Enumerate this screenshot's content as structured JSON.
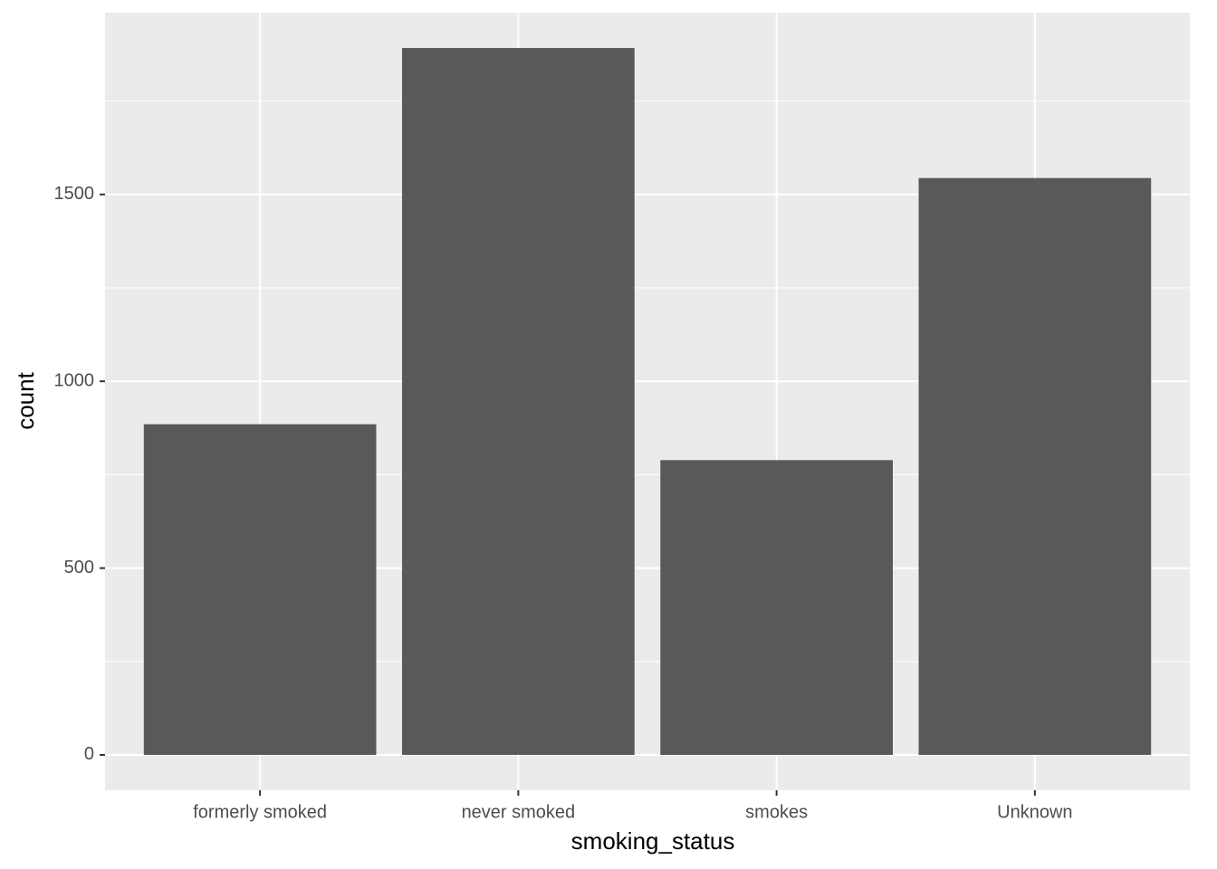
{
  "chart_data": {
    "type": "bar",
    "x_label": "smoking_status",
    "y_label": "count",
    "categories": [
      "formerly smoked",
      "never smoked",
      "smokes",
      "Unknown"
    ],
    "values": [
      885,
      1892,
      789,
      1544
    ],
    "color": "#595959",
    "ylim": [
      -94.6,
      1986.6
    ],
    "yticks": [
      0,
      500,
      1000,
      1500
    ],
    "minor_yticks": [
      250,
      750,
      1250,
      1750
    ],
    "grid": true
  }
}
